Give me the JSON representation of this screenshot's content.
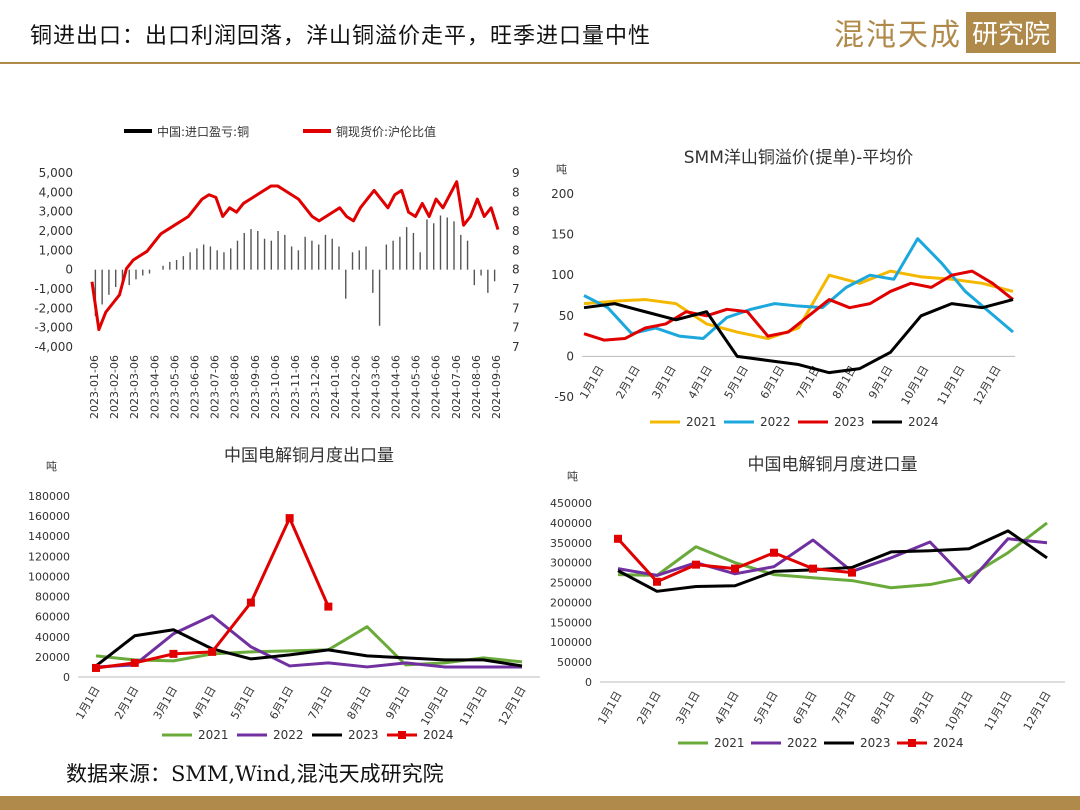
{
  "header": {
    "title": "铜进出口：出口利润回落，洋山铜溢价走平，旺季进口量中性"
  },
  "logo": {
    "text": "混沌天成",
    "box_text": "研究院"
  },
  "footer": {
    "source": "数据来源：SMM,Wind,混沌天成研究院"
  },
  "chart_data": [
    {
      "id": "profit",
      "type": "bar+line",
      "title": "",
      "legend": [
        "中国:进口盈亏:铜",
        "铜现货价:沪伦比值"
      ],
      "legend_position": "top",
      "colors": [
        "#000000",
        "#e00000"
      ],
      "x_labels": [
        "2023-01-06",
        "2023-02-06",
        "2023-03-06",
        "2023-04-06",
        "2023-05-06",
        "2023-06-06",
        "2023-07-06",
        "2023-08-06",
        "2023-09-06",
        "2023-10-06",
        "2023-11-06",
        "2023-12-06",
        "2024-01-06",
        "2024-02-06",
        "2024-03-06",
        "2024-04-06",
        "2024-05-06",
        "2024-06-06",
        "2024-07-06",
        "2024-08-06",
        "2024-09-06"
      ],
      "y_left_ticks": [
        "5,000",
        "4,000",
        "3,000",
        "2,000",
        "1,000",
        "0",
        "-1,000",
        "-2,000",
        "-3,000",
        "-4,000"
      ],
      "y_left_range": [
        -4000,
        5000
      ],
      "y_right_ticks": [
        "9",
        "8",
        "8",
        "8",
        "8",
        "8",
        "7",
        "7",
        "7",
        "7"
      ],
      "y_right_range": [
        7,
        9
      ],
      "ratio_series": [
        7.75,
        7.2,
        7.4,
        7.5,
        7.6,
        7.9,
        8.0,
        8.05,
        8.1,
        8.2,
        8.3,
        8.35,
        8.4,
        8.45,
        8.5,
        8.6,
        8.7,
        8.75,
        8.72,
        8.5,
        8.6,
        8.55,
        8.65,
        8.7,
        8.75,
        8.8,
        8.85,
        8.85,
        8.8,
        8.75,
        8.7,
        8.6,
        8.5,
        8.45,
        8.5,
        8.55,
        8.6,
        8.5,
        8.45,
        8.6,
        8.7,
        8.8,
        8.7,
        8.6,
        8.75,
        8.8,
        8.55,
        8.5,
        8.65,
        8.5,
        8.7,
        8.6,
        8.75,
        8.9,
        8.4,
        8.5,
        8.7,
        8.5,
        8.6,
        8.35
      ],
      "profit_series": [
        -2400,
        -1800,
        -1300,
        -900,
        -600,
        -800,
        -500,
        -300,
        -200,
        0,
        200,
        400,
        500,
        700,
        900,
        1100,
        1300,
        1200,
        1000,
        900,
        1100,
        1500,
        1900,
        2100,
        2000,
        1600,
        1500,
        2000,
        1800,
        1200,
        1000,
        1700,
        1500,
        1300,
        1800,
        1600,
        1200,
        -1500,
        900,
        1000,
        1200,
        -1200,
        -2900,
        1300,
        1500,
        1700,
        2200,
        1900,
        900,
        2600,
        2400,
        2800,
        2700,
        2500,
        1800,
        1500,
        -800,
        -300,
        -1200,
        -600
      ]
    },
    {
      "id": "yangshan",
      "type": "line",
      "title": "SMM洋山铜溢价(提单)-平均价",
      "unit": "吨",
      "y_ticks": [
        "200",
        "150",
        "100",
        "50",
        "0",
        "-50"
      ],
      "y_range": [
        -50,
        200
      ],
      "x_labels": [
        "1月1日",
        "2月1日",
        "3月1日",
        "4月1日",
        "5月1日",
        "6月1日",
        "7月1日",
        "8月1日",
        "9月1日",
        "10月1日",
        "11月1日",
        "12月1日"
      ],
      "legend_position": "bottom",
      "series": [
        {
          "name": "2021",
          "color": "#f5b800",
          "values": [
            65,
            68,
            70,
            65,
            40,
            30,
            22,
            35,
            100,
            90,
            105,
            98,
            95,
            90,
            80
          ]
        },
        {
          "name": "2022",
          "color": "#1ca8dc",
          "values": [
            75,
            60,
            28,
            35,
            25,
            22,
            48,
            58,
            65,
            62,
            60,
            85,
            100,
            95,
            145,
            115,
            80,
            55,
            30
          ]
        },
        {
          "name": "2023",
          "color": "#e00000",
          "values": [
            28,
            20,
            22,
            35,
            40,
            55,
            50,
            58,
            55,
            25,
            30,
            50,
            70,
            60,
            65,
            80,
            90,
            85,
            100,
            105,
            90,
            70
          ]
        },
        {
          "name": "2024",
          "color": "#000000",
          "values": [
            60,
            65,
            55,
            45,
            55,
            0,
            -5,
            -10,
            -20,
            -15,
            5,
            50,
            65,
            60,
            70
          ]
        }
      ]
    },
    {
      "id": "export",
      "type": "line",
      "title": "中国电解铜月度出口量",
      "unit": "吨",
      "y_ticks": [
        "180000",
        "160000",
        "140000",
        "120000",
        "100000",
        "80000",
        "60000",
        "40000",
        "20000",
        "0"
      ],
      "y_range": [
        0,
        180000
      ],
      "x_labels": [
        "1月1日",
        "2月1日",
        "3月1日",
        "4月1日",
        "5月1日",
        "6月1日",
        "7月1日",
        "8月1日",
        "9月1日",
        "10月1日",
        "11月1日",
        "12月1日"
      ],
      "legend_position": "bottom",
      "series": [
        {
          "name": "2021",
          "color": "#6aaa3a",
          "values": [
            21000,
            17000,
            16000,
            23000,
            25000,
            26000,
            27000,
            50000,
            12000,
            14000,
            19000,
            15000
          ]
        },
        {
          "name": "2022",
          "color": "#7030a0",
          "values": [
            10000,
            12000,
            43000,
            61000,
            30000,
            11000,
            14000,
            10000,
            14000,
            10000,
            10000,
            10000
          ]
        },
        {
          "name": "2023",
          "color": "#000000",
          "values": [
            11000,
            41000,
            47000,
            28000,
            18000,
            22000,
            27000,
            21000,
            19000,
            17000,
            17000,
            11000
          ]
        },
        {
          "name": "2024",
          "color": "#e00000",
          "values": [
            9000,
            14000,
            23000,
            25000,
            74000,
            158000,
            70000
          ]
        }
      ]
    },
    {
      "id": "import",
      "type": "line",
      "title": "中国电解铜月度进口量",
      "unit": "吨",
      "y_ticks": [
        "450000",
        "400000",
        "350000",
        "300000",
        "250000",
        "200000",
        "150000",
        "100000",
        "50000",
        "0"
      ],
      "y_range": [
        0,
        450000
      ],
      "x_labels": [
        "1月1日",
        "2月1日",
        "3月1日",
        "4月1日",
        "5月1日",
        "6月1日",
        "7月1日",
        "8月1日",
        "9月1日",
        "10月1日",
        "11月1日",
        "12月1日"
      ],
      "legend_position": "bottom",
      "series": [
        {
          "name": "2021",
          "color": "#6aaa3a",
          "values": [
            270000,
            268000,
            340000,
            300000,
            270000,
            262000,
            255000,
            237000,
            245000,
            265000,
            325000,
            400000
          ]
        },
        {
          "name": "2022",
          "color": "#7030a0",
          "values": [
            285000,
            268000,
            300000,
            272000,
            290000,
            357000,
            278000,
            312000,
            352000,
            250000,
            360000,
            350000
          ]
        },
        {
          "name": "2023",
          "color": "#000000",
          "values": [
            280000,
            228000,
            240000,
            242000,
            278000,
            282000,
            288000,
            327000,
            330000,
            335000,
            380000,
            312000
          ]
        },
        {
          "name": "2024",
          "color": "#e00000",
          "values": [
            360000,
            252000,
            295000,
            285000,
            325000,
            285000,
            275000
          ]
        }
      ]
    }
  ]
}
